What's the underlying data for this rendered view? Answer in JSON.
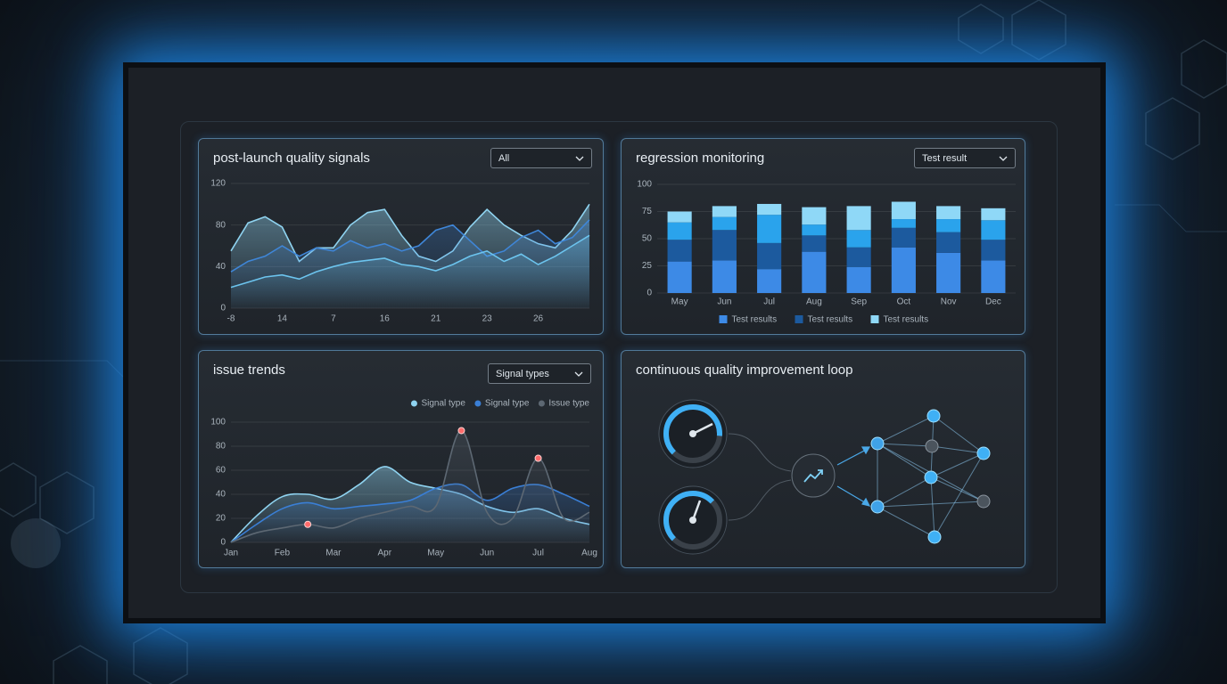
{
  "chart_data": [
    {
      "type": "area",
      "title": "post-launch quality signals",
      "dropdown": "All",
      "smooth": false,
      "categories": [
        "-8",
        null,
        null,
        "14",
        null,
        null,
        "7",
        null,
        null,
        "16",
        null,
        null,
        "21",
        null,
        null,
        "23",
        null,
        null,
        "26",
        null,
        null,
        null
      ],
      "ylim": [
        0,
        120
      ],
      "yticks": [
        0,
        40,
        80,
        120
      ],
      "grid": true,
      "series": [
        {
          "color": "#8fd3f0",
          "values": [
            55,
            82,
            88,
            78,
            45,
            58,
            58,
            80,
            92,
            95,
            70,
            50,
            45,
            55,
            78,
            95,
            80,
            70,
            62,
            58,
            75,
            100
          ]
        },
        {
          "color": "#3f86d8",
          "values": [
            35,
            45,
            50,
            60,
            50,
            58,
            55,
            65,
            58,
            62,
            55,
            60,
            75,
            80,
            65,
            50,
            55,
            68,
            75,
            62,
            68,
            85
          ]
        },
        {
          "color": "#6cc4ee",
          "values": [
            20,
            25,
            30,
            32,
            28,
            35,
            40,
            44,
            46,
            48,
            42,
            40,
            36,
            42,
            50,
            55,
            45,
            52,
            42,
            50,
            60,
            70
          ]
        }
      ]
    },
    {
      "type": "bar",
      "stacked": true,
      "title": "regression monitoring",
      "dropdown": "Test result",
      "categories": [
        "May",
        "Jun",
        "Jul",
        "Aug",
        "Sep",
        "Oct",
        "Nov",
        "Dec"
      ],
      "ylim": [
        0,
        100
      ],
      "yticks": [
        0,
        25,
        50,
        75,
        100
      ],
      "grid": true,
      "legend": "bottom",
      "series": [
        {
          "name": "Test results",
          "color": "#3d8ae6",
          "values": [
            29,
            30,
            22,
            38,
            24,
            42,
            37,
            30
          ]
        },
        {
          "name": "Test results",
          "color": "#1c5a9e",
          "values": [
            20,
            28,
            24,
            15,
            18,
            18,
            19,
            19
          ]
        },
        {
          "color": "#2aa3ec",
          "values": [
            16,
            12,
            26,
            10,
            16,
            8,
            12,
            18
          ]
        },
        {
          "name": "Test results",
          "color": "#8fd8f7",
          "values": [
            10,
            10,
            10,
            16,
            22,
            16,
            12,
            11
          ]
        }
      ]
    },
    {
      "type": "area",
      "title": "issue trends",
      "dropdown": "Signal types",
      "smooth": true,
      "legend": "top-right",
      "categories": [
        "Jan",
        null,
        "Feb",
        null,
        "Mar",
        null,
        "Apr",
        null,
        "May",
        null,
        "Jun",
        null,
        "Jul",
        null,
        "Aug"
      ],
      "ylim": [
        0,
        100
      ],
      "yticks": [
        0,
        20,
        40,
        60,
        80,
        100
      ],
      "grid": true,
      "series": [
        {
          "name": "Signal type",
          "color": "#8fd3f0",
          "values": [
            0,
            22,
            38,
            40,
            36,
            48,
            63,
            50,
            45,
            40,
            30,
            25,
            28,
            20,
            15
          ]
        },
        {
          "name": "Signal type",
          "color": "#3a7fd6",
          "values": [
            0,
            15,
            28,
            33,
            28,
            30,
            32,
            35,
            45,
            48,
            35,
            45,
            48,
            40,
            30
          ]
        },
        {
          "name": "Issue type",
          "color": "#5d6873",
          "peak_color": "#ff6b6b",
          "values": [
            0,
            8,
            12,
            15,
            12,
            20,
            25,
            30,
            30,
            93,
            25,
            20,
            70,
            20,
            25
          ]
        }
      ]
    }
  ],
  "diagram": {
    "title": "continuous quality improvement loop"
  }
}
